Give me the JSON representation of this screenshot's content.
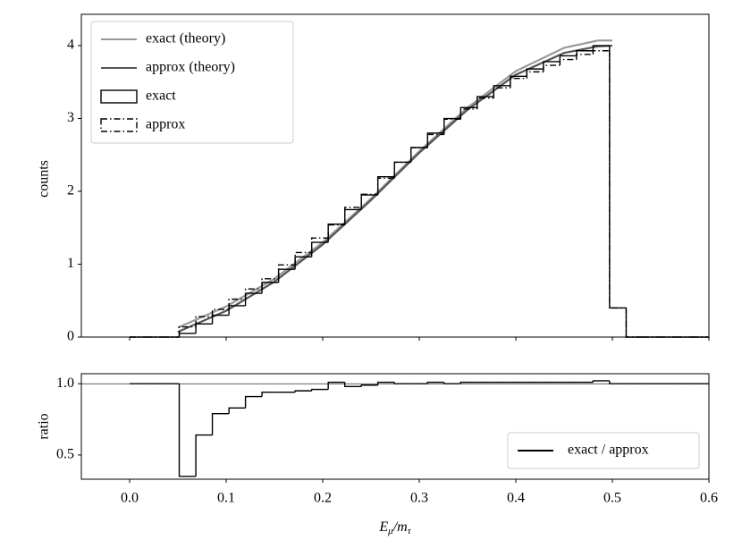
{
  "chart_data": [
    {
      "type": "histogram",
      "ylabel": "counts",
      "xlim": [
        -0.05,
        0.6
      ],
      "xticks": [
        0,
        0.1,
        0.2,
        0.3,
        0.4,
        0.5,
        0.6
      ],
      "ylim": [
        0,
        4.43
      ],
      "yticks": [
        0,
        1,
        2,
        3,
        4
      ],
      "legend": "upper left",
      "bins": [
        0,
        0.0171,
        0.0343,
        0.0514,
        0.0686,
        0.0857,
        0.1029,
        0.12,
        0.1371,
        0.1543,
        0.1714,
        0.1886,
        0.2057,
        0.2229,
        0.24,
        0.2571,
        0.2743,
        0.2914,
        0.3086,
        0.3257,
        0.3429,
        0.36,
        0.3771,
        0.3943,
        0.4114,
        0.4286,
        0.4457,
        0.4629,
        0.48,
        0.4971,
        0.5143,
        0.5314,
        0.5486,
        0.5657,
        0.5829,
        0.6
      ],
      "lines": [
        {
          "name": "exact (theory)",
          "color": "#999999",
          "x": [
            0.05,
            0.1,
            0.15,
            0.2,
            0.25,
            0.3,
            0.35,
            0.4,
            0.45,
            0.485,
            0.5
          ],
          "values": [
            0.13,
            0.42,
            0.8,
            1.3,
            1.9,
            2.55,
            3.15,
            3.65,
            3.97,
            4.07,
            4.07
          ]
        },
        {
          "name": "approx (theory)",
          "color": "#555555",
          "x": [
            0.05,
            0.1,
            0.15,
            0.2,
            0.25,
            0.3,
            0.35,
            0.4,
            0.45,
            0.485,
            0.5
          ],
          "values": [
            0.07,
            0.36,
            0.76,
            1.27,
            1.88,
            2.53,
            3.12,
            3.6,
            3.9,
            3.99,
            4.0
          ]
        }
      ],
      "series": [
        {
          "name": "exact",
          "color": "#000000",
          "linestyle": "solid",
          "values": [
            0,
            0,
            0,
            0.05,
            0.18,
            0.3,
            0.43,
            0.6,
            0.75,
            0.93,
            1.1,
            1.3,
            1.55,
            1.75,
            1.95,
            2.2,
            2.4,
            2.6,
            2.8,
            3.0,
            3.15,
            3.3,
            3.45,
            3.58,
            3.68,
            3.78,
            3.86,
            3.93,
            4.0,
            0.4,
            0,
            0,
            0,
            0,
            0
          ]
        },
        {
          "name": "approx",
          "color": "#000000",
          "linestyle": "dashdot",
          "values": [
            0,
            0,
            0,
            0.14,
            0.28,
            0.38,
            0.52,
            0.66,
            0.8,
            0.99,
            1.16,
            1.36,
            1.54,
            1.78,
            1.96,
            2.18,
            2.4,
            2.6,
            2.78,
            2.99,
            3.13,
            3.28,
            3.42,
            3.55,
            3.64,
            3.73,
            3.81,
            3.88,
            3.93,
            0.4,
            0,
            0,
            0,
            0,
            0
          ]
        }
      ]
    },
    {
      "type": "histogram",
      "ylabel": "ratio",
      "xlabel": [
        "E",
        "μ",
        "/m",
        "τ"
      ],
      "xlim": [
        -0.05,
        0.6
      ],
      "xticks": [
        {
          "value": 0,
          "label": "0.0"
        },
        0.1,
        0.2,
        0.3,
        0.4,
        0.5,
        0.6
      ],
      "ylim": [
        0.33,
        1.07
      ],
      "yticks": [
        {
          "value": 0.5,
          "label": "0.5"
        },
        {
          "value": 1.0,
          "label": "1.0"
        }
      ],
      "hline": 1.0,
      "legend": "lower right",
      "series": [
        {
          "name": "exact / approx",
          "color": "#000000",
          "linestyle": "solid",
          "values": [
            1,
            1,
            1,
            0.35,
            0.64,
            0.79,
            0.83,
            0.91,
            0.94,
            0.94,
            0.95,
            0.96,
            1.01,
            0.98,
            0.99,
            1.01,
            1.0,
            1.0,
            1.01,
            1.0,
            1.01,
            1.01,
            1.01,
            1.01,
            1.01,
            1.01,
            1.01,
            1.01,
            1.02,
            1.0,
            1,
            1,
            1,
            1,
            1
          ]
        }
      ]
    }
  ]
}
